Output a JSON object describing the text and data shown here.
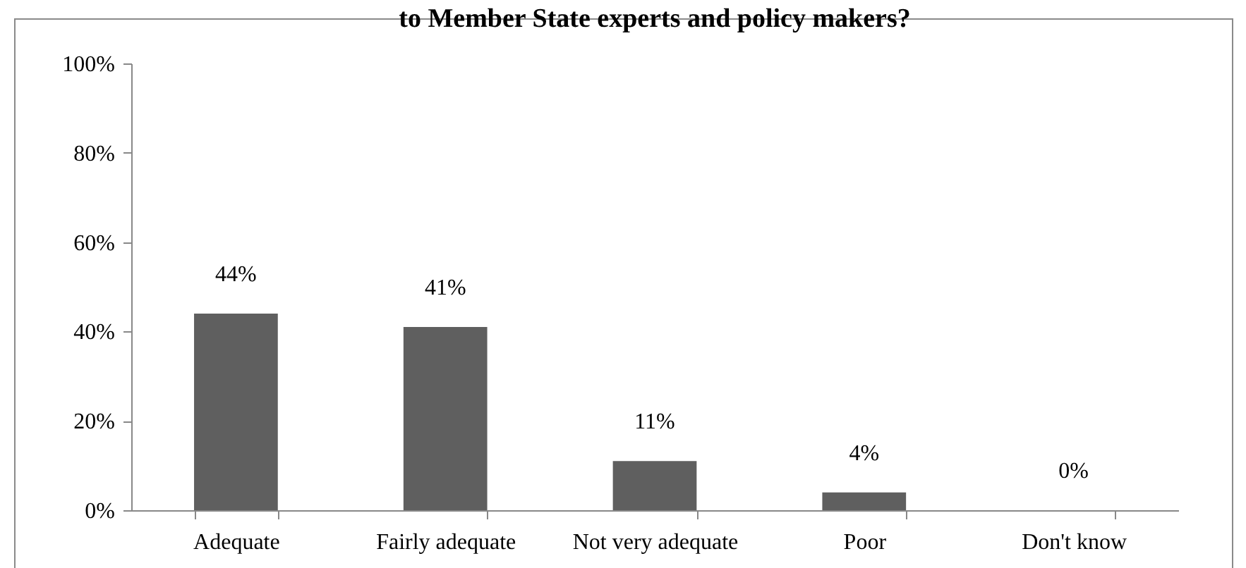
{
  "chart_data": {
    "type": "bar",
    "title": "to Member State experts and policy makers?",
    "categories": [
      "Adequate",
      "Fairly adequate",
      "Not very adequate",
      "Poor",
      "Don't know"
    ],
    "values": [
      44,
      41,
      11,
      4,
      0
    ],
    "value_labels": [
      "44%",
      "41%",
      "11%",
      "4%",
      "0%"
    ],
    "color": "#5f5f5f",
    "ylim": [
      0,
      100
    ],
    "yticks": [
      {
        "value": 0,
        "label": "0%"
      },
      {
        "value": 20,
        "label": "20%"
      },
      {
        "value": 40,
        "label": "40%"
      },
      {
        "value": 60,
        "label": "60%"
      },
      {
        "value": 80,
        "label": "80%"
      },
      {
        "value": 100,
        "label": "100%"
      }
    ],
    "grid": false
  }
}
